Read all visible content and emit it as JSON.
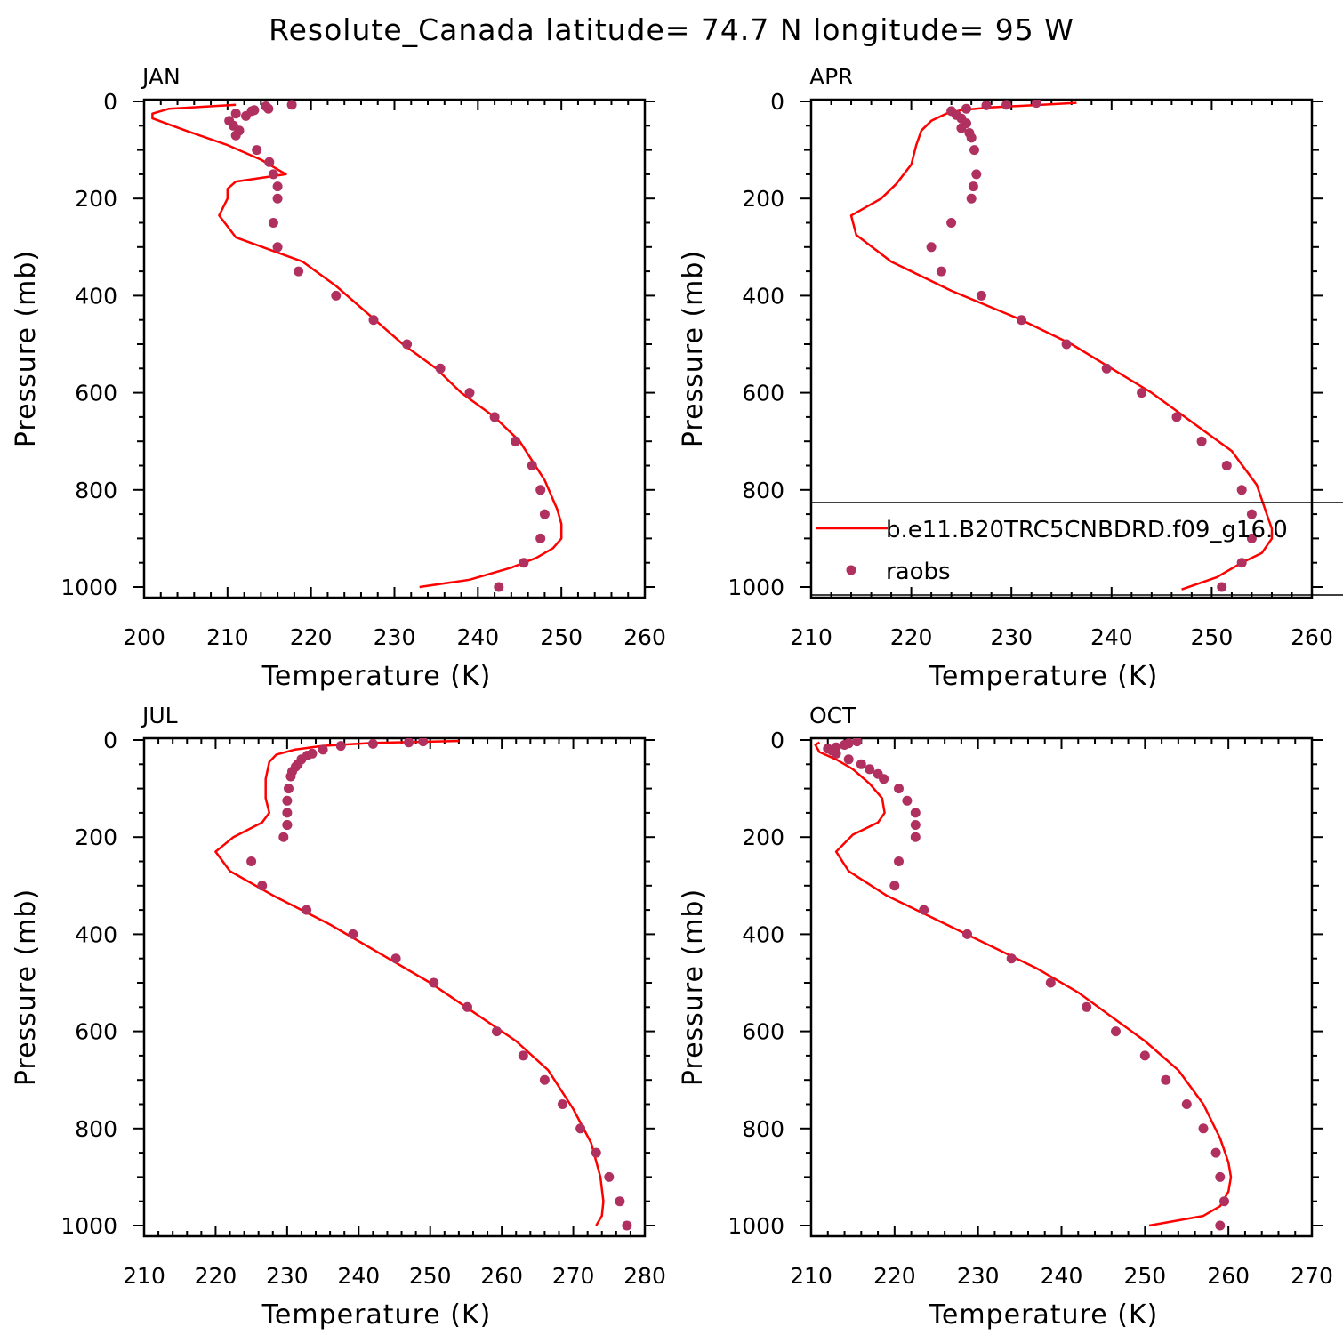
{
  "title": "Resolute_Canada  latitude= 74.7 N longitude= 95 W",
  "colors": {
    "model": "#ff0000",
    "raobs": "#b03060"
  },
  "legend": {
    "model_label": "b.e11.B20TRC5CNBDRD.f09_g16.0",
    "obs_label": "raobs"
  },
  "chart_data": [
    {
      "type": "line",
      "panel": "JAN",
      "xlabel": "Temperature (K)",
      "ylabel": "Pressure (mb)",
      "xlim": [
        200,
        260
      ],
      "ylim": [
        1000,
        0
      ],
      "xticks": [
        200,
        210,
        220,
        230,
        240,
        250,
        260
      ],
      "yticks": [
        0,
        200,
        400,
        600,
        800,
        1000
      ],
      "series": [
        {
          "name": "b.e11.B20TRC5CNBDRD.f09_g16.0",
          "kind": "line",
          "x": [
            211,
            203,
            201,
            201,
            205,
            210,
            214,
            216,
            217,
            211,
            210,
            210,
            209,
            211,
            219,
            223,
            227,
            231,
            235,
            238,
            242,
            245,
            248,
            249.5,
            250,
            250,
            249,
            247,
            244,
            239,
            233
          ],
          "y": [
            7,
            15,
            25,
            35,
            60,
            90,
            120,
            140,
            150,
            165,
            180,
            200,
            235,
            280,
            330,
            380,
            440,
            500,
            550,
            600,
            650,
            700,
            780,
            840,
            870,
            900,
            920,
            940,
            960,
            985,
            1000
          ]
        },
        {
          "name": "raobs",
          "kind": "scatter",
          "x": [
            217.7,
            214.6,
            214.9,
            213.2,
            212.9,
            211.0,
            212.2,
            210.2,
            210.7,
            211.4,
            211.0,
            213.5,
            215.0,
            215.5,
            216.0,
            216.0,
            215.5,
            216.0,
            218.5,
            223.0,
            227.5,
            231.5,
            235.5,
            239.0,
            242.0,
            244.5,
            246.5,
            247.5,
            248.0,
            247.5,
            245.5,
            242.5
          ],
          "y": [
            7,
            10,
            15,
            18,
            20,
            25,
            30,
            40,
            50,
            60,
            70,
            100,
            125,
            150,
            175,
            200,
            250,
            300,
            350,
            400,
            450,
            500,
            550,
            600,
            650,
            700,
            750,
            800,
            850,
            900,
            950,
            1000
          ]
        }
      ]
    },
    {
      "type": "line",
      "panel": "APR",
      "xlabel": "Temperature (K)",
      "ylabel": "Pressure (mb)",
      "xlim": [
        210,
        260
      ],
      "ylim": [
        1000,
        0
      ],
      "xticks": [
        210,
        220,
        230,
        240,
        250,
        260
      ],
      "yticks": [
        0,
        200,
        400,
        600,
        800,
        1000
      ],
      "series": [
        {
          "name": "b.e11.B20TRC5CNBDRD.f09_g16.0",
          "kind": "line",
          "x": [
            236.5,
            232,
            228,
            225,
            223.5,
            222,
            221,
            220.5,
            220,
            218.5,
            217,
            214,
            214.5,
            218,
            224,
            231,
            236,
            240,
            244,
            248,
            252,
            254.5,
            255.5,
            256,
            256,
            255,
            253,
            250.5,
            247
          ],
          "y": [
            3,
            8,
            12,
            18,
            25,
            40,
            60,
            90,
            130,
            170,
            200,
            235,
            275,
            330,
            390,
            450,
            500,
            550,
            600,
            660,
            720,
            790,
            850,
            880,
            900,
            930,
            950,
            980,
            1005
          ]
        },
        {
          "name": "raobs",
          "kind": "scatter",
          "x": [
            232.5,
            229.5,
            227.5,
            225.5,
            224.0,
            224.5,
            225.0,
            225.5,
            225.0,
            225.8,
            226.0,
            226.3,
            226.5,
            226.2,
            226.0,
            224.0,
            222.0,
            223.0,
            227.0,
            231.0,
            235.5,
            239.5,
            243.0,
            246.5,
            249.0,
            251.5,
            253.0,
            254.0,
            254.0,
            253.0,
            251.0
          ],
          "y": [
            3,
            7,
            8,
            15,
            20,
            28,
            35,
            45,
            55,
            65,
            75,
            100,
            150,
            175,
            200,
            250,
            300,
            350,
            400,
            450,
            500,
            550,
            600,
            650,
            700,
            750,
            800,
            850,
            900,
            950,
            1000
          ]
        }
      ]
    },
    {
      "type": "line",
      "panel": "JUL",
      "xlabel": "Temperature (K)",
      "ylabel": "Pressure (mb)",
      "xlim": [
        210,
        280
      ],
      "ylim": [
        1000,
        0
      ],
      "xticks": [
        210,
        220,
        230,
        240,
        250,
        260,
        270,
        280
      ],
      "yticks": [
        0,
        200,
        400,
        600,
        800,
        1000
      ],
      "series": [
        {
          "name": "b.e11.B20TRC5CNBDRD.f09_g16.0",
          "kind": "line",
          "x": [
            254,
            242,
            235,
            231,
            228.5,
            227.5,
            227.0,
            227.0,
            227.5,
            226.5,
            222.5,
            220.0,
            222.0,
            228.0,
            236.0,
            243.0,
            250.0,
            256.0,
            262.0,
            266.5,
            270.0,
            272.5,
            273.8,
            274.2,
            274.0,
            273.2
          ],
          "y": [
            2,
            6,
            12,
            20,
            30,
            45,
            80,
            120,
            150,
            170,
            200,
            230,
            270,
            320,
            380,
            440,
            500,
            560,
            620,
            680,
            760,
            830,
            900,
            950,
            980,
            1000
          ]
        },
        {
          "name": "raobs",
          "kind": "scatter",
          "x": [
            249.0,
            247.0,
            242.0,
            237.5,
            235.0,
            233.5,
            232.8,
            232.0,
            231.5,
            231.2,
            230.7,
            230.5,
            230.2,
            230.0,
            230.0,
            230.0,
            230.0,
            229.5,
            225.0,
            226.5,
            232.7,
            239.2,
            245.2,
            250.5,
            255.2,
            259.3,
            263.0,
            266.0,
            268.5,
            271.0,
            273.2,
            275.0,
            276.5,
            277.5
          ],
          "y": [
            3,
            5,
            8,
            12,
            20,
            28,
            32,
            40,
            50,
            55,
            65,
            75,
            100,
            125,
            150,
            175,
            175,
            200,
            250,
            300,
            350,
            400,
            450,
            500,
            550,
            600,
            650,
            700,
            750,
            800,
            850,
            900,
            950,
            1000
          ]
        }
      ]
    },
    {
      "type": "line",
      "panel": "OCT",
      "xlabel": "Temperature (K)",
      "ylabel": "Pressure (mb)",
      "xlim": [
        210,
        270
      ],
      "ylim": [
        1000,
        0
      ],
      "xticks": [
        210,
        220,
        230,
        240,
        250,
        260,
        270
      ],
      "yticks": [
        0,
        200,
        400,
        600,
        800,
        1000
      ],
      "series": [
        {
          "name": "b.e11.B20TRC5CNBDRD.f09_g16.0",
          "kind": "line",
          "x": [
            211,
            210.5,
            211,
            213,
            215,
            217,
            218.5,
            218.8,
            218.0,
            215.0,
            213.0,
            214.5,
            219.0,
            225.0,
            231.0,
            237.0,
            242.0,
            246.0,
            250.0,
            254.0,
            257.0,
            259.0,
            260.0,
            260.3,
            260.0,
            259.0,
            257.0,
            250.5
          ],
          "y": [
            5,
            10,
            25,
            40,
            60,
            90,
            120,
            150,
            170,
            195,
            230,
            270,
            320,
            370,
            420,
            470,
            520,
            570,
            620,
            680,
            750,
            820,
            870,
            900,
            930,
            960,
            980,
            1000
          ]
        },
        {
          "name": "raobs",
          "kind": "scatter",
          "x": [
            215.5,
            214.5,
            214.0,
            213.0,
            212.0,
            212.5,
            213.0,
            214.5,
            216.0,
            217.0,
            218.0,
            218.7,
            220.5,
            221.5,
            222.5,
            222.5,
            222.5,
            220.5,
            220.0,
            223.5,
            228.7,
            234.0,
            238.7,
            243.0,
            246.5,
            250.0,
            252.5,
            255.0,
            257.0,
            258.5,
            259.0,
            259.5,
            259.0
          ],
          "y": [
            3,
            7,
            10,
            15,
            18,
            22,
            28,
            40,
            50,
            60,
            70,
            80,
            100,
            125,
            150,
            175,
            200,
            250,
            300,
            350,
            400,
            450,
            500,
            550,
            600,
            650,
            700,
            750,
            800,
            850,
            900,
            950,
            1000
          ]
        }
      ]
    }
  ]
}
